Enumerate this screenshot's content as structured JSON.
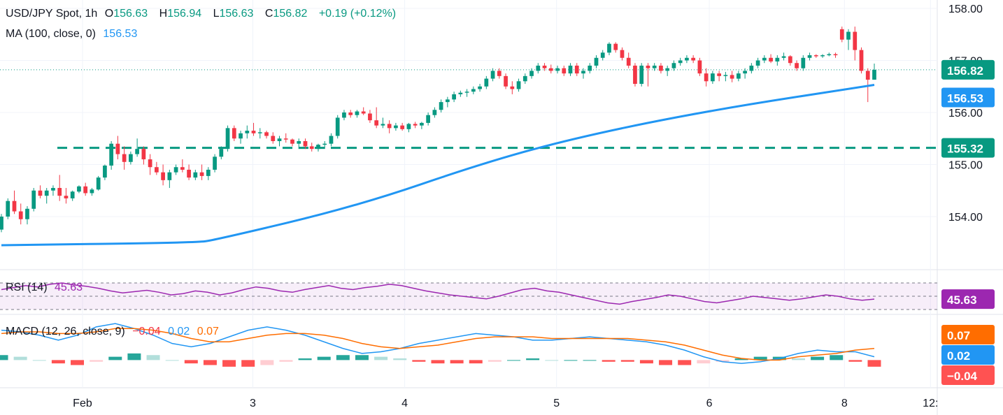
{
  "header": {
    "symbol": "USD/JPY Spot, 1h",
    "open_label": "O",
    "open": "156.63",
    "high_label": "H",
    "high": "156.94",
    "low_label": "L",
    "low": "156.63",
    "close_label": "C",
    "close": "156.82",
    "change": "+0.19 (+0.12%)"
  },
  "ma": {
    "label": "MA (100, close, 0)",
    "value": "156.53"
  },
  "rsi": {
    "label": "RSI (14)",
    "value": "45.63"
  },
  "macd": {
    "label": "MACD (12, 26, close, 9)",
    "hist": "−0.04",
    "macd": "0.02",
    "signal": "0.07"
  },
  "price_labels": {
    "last": "156.82",
    "ma": "156.53",
    "level": "155.32"
  },
  "colors": {
    "up": "#089981",
    "down": "#f23645",
    "ma": "#2196f3",
    "rsi": "#9c27b0",
    "signal": "#ff6d00",
    "level": "#089981"
  },
  "chart_data": {
    "type": "candlestick",
    "y_axis_ticks": [
      "158.00",
      "157.00",
      "156.00",
      "155.00",
      "154.00"
    ],
    "x_axis_ticks": [
      "Feb",
      "3",
      "4",
      "5",
      "6",
      "8",
      "12:"
    ],
    "ylim": [
      153.0,
      158.2
    ],
    "horizontal_level": 155.32,
    "last_price": 156.82,
    "ma_100_last": 156.53,
    "candles": [
      [
        153.75,
        154.05,
        153.7,
        154.0
      ],
      [
        154.0,
        154.35,
        153.95,
        154.3
      ],
      [
        154.3,
        154.5,
        154.05,
        154.1
      ],
      [
        154.1,
        154.25,
        153.85,
        153.95
      ],
      [
        153.95,
        154.2,
        153.85,
        154.15
      ],
      [
        154.15,
        154.55,
        154.1,
        154.5
      ],
      [
        154.5,
        154.6,
        154.35,
        154.4
      ],
      [
        154.4,
        154.55,
        154.25,
        154.5
      ],
      [
        154.5,
        154.6,
        154.4,
        154.55
      ],
      [
        154.55,
        154.8,
        154.3,
        154.4
      ],
      [
        154.4,
        154.55,
        154.25,
        154.35
      ],
      [
        154.35,
        154.5,
        154.3,
        154.48
      ],
      [
        154.48,
        154.6,
        154.45,
        154.58
      ],
      [
        154.58,
        154.65,
        154.4,
        154.45
      ],
      [
        154.45,
        154.55,
        154.4,
        154.52
      ],
      [
        154.52,
        154.78,
        154.5,
        154.75
      ],
      [
        154.75,
        155.0,
        154.7,
        154.98
      ],
      [
        154.98,
        155.45,
        154.9,
        155.4
      ],
      [
        155.4,
        155.55,
        155.1,
        155.2
      ],
      [
        155.2,
        155.35,
        154.9,
        155.05
      ],
      [
        155.05,
        155.25,
        155.0,
        155.2
      ],
      [
        155.2,
        155.5,
        155.15,
        155.3
      ],
      [
        155.3,
        155.35,
        155.0,
        155.1
      ],
      [
        155.1,
        155.2,
        154.8,
        154.95
      ],
      [
        154.95,
        155.05,
        154.8,
        154.85
      ],
      [
        154.85,
        155.0,
        154.6,
        154.7
      ],
      [
        154.7,
        154.9,
        154.55,
        154.85
      ],
      [
        154.85,
        155.0,
        154.8,
        154.95
      ],
      [
        154.95,
        155.1,
        154.85,
        154.9
      ],
      [
        154.9,
        155.0,
        154.7,
        154.75
      ],
      [
        154.75,
        154.9,
        154.7,
        154.85
      ],
      [
        154.85,
        155.0,
        154.7,
        154.78
      ],
      [
        154.78,
        154.95,
        154.7,
        154.9
      ],
      [
        154.9,
        155.2,
        154.85,
        155.15
      ],
      [
        155.15,
        155.35,
        155.1,
        155.3
      ],
      [
        155.3,
        155.75,
        155.25,
        155.7
      ],
      [
        155.7,
        155.75,
        155.45,
        155.5
      ],
      [
        155.5,
        155.65,
        155.4,
        155.6
      ],
      [
        155.6,
        155.75,
        155.5,
        155.65
      ],
      [
        155.65,
        155.8,
        155.55,
        155.6
      ],
      [
        155.6,
        155.7,
        155.5,
        155.62
      ],
      [
        155.62,
        155.65,
        155.5,
        155.55
      ],
      [
        155.55,
        155.62,
        155.4,
        155.45
      ],
      [
        155.45,
        155.55,
        155.35,
        155.5
      ],
      [
        155.5,
        155.6,
        155.42,
        155.48
      ],
      [
        155.48,
        155.5,
        155.35,
        155.4
      ],
      [
        155.4,
        155.5,
        155.3,
        155.45
      ],
      [
        155.45,
        155.5,
        155.3,
        155.35
      ],
      [
        155.35,
        155.42,
        155.25,
        155.3
      ],
      [
        155.3,
        155.4,
        155.25,
        155.38
      ],
      [
        155.38,
        155.45,
        155.3,
        155.4
      ],
      [
        155.4,
        155.6,
        155.35,
        155.55
      ],
      [
        155.55,
        155.95,
        155.5,
        155.9
      ],
      [
        155.9,
        156.05,
        155.85,
        156.0
      ],
      [
        156.0,
        156.05,
        155.9,
        155.95
      ],
      [
        155.95,
        156.05,
        155.9,
        156.02
      ],
      [
        156.02,
        156.1,
        155.95,
        155.98
      ],
      [
        155.98,
        156.05,
        155.8,
        155.85
      ],
      [
        155.85,
        156.1,
        155.7,
        155.75
      ],
      [
        155.75,
        155.9,
        155.7,
        155.78
      ],
      [
        155.78,
        155.85,
        155.6,
        155.7
      ],
      [
        155.7,
        155.8,
        155.65,
        155.75
      ],
      [
        155.75,
        155.8,
        155.65,
        155.68
      ],
      [
        155.68,
        155.8,
        155.62,
        155.78
      ],
      [
        155.78,
        155.82,
        155.7,
        155.75
      ],
      [
        155.75,
        155.82,
        155.68,
        155.8
      ],
      [
        155.8,
        156.0,
        155.75,
        155.95
      ],
      [
        155.95,
        156.1,
        155.9,
        156.05
      ],
      [
        156.05,
        156.25,
        156.0,
        156.2
      ],
      [
        156.2,
        156.3,
        156.1,
        156.25
      ],
      [
        156.25,
        156.4,
        156.2,
        156.35
      ],
      [
        156.35,
        156.42,
        156.3,
        156.38
      ],
      [
        156.38,
        156.45,
        156.3,
        156.4
      ],
      [
        156.4,
        156.5,
        156.35,
        156.45
      ],
      [
        156.45,
        156.55,
        156.4,
        156.5
      ],
      [
        156.5,
        156.7,
        156.45,
        156.65
      ],
      [
        156.65,
        156.85,
        156.6,
        156.8
      ],
      [
        156.8,
        156.85,
        156.65,
        156.7
      ],
      [
        156.7,
        156.75,
        156.45,
        156.5
      ],
      [
        156.5,
        156.6,
        156.35,
        156.45
      ],
      [
        156.45,
        156.65,
        156.4,
        156.6
      ],
      [
        156.6,
        156.75,
        156.55,
        156.7
      ],
      [
        156.7,
        156.85,
        156.65,
        156.8
      ],
      [
        156.8,
        156.95,
        156.75,
        156.9
      ],
      [
        156.9,
        156.95,
        156.8,
        156.85
      ],
      [
        156.85,
        156.92,
        156.75,
        156.8
      ],
      [
        156.8,
        156.9,
        156.75,
        156.85
      ],
      [
        156.85,
        156.9,
        156.7,
        156.75
      ],
      [
        156.75,
        156.95,
        156.7,
        156.9
      ],
      [
        156.9,
        156.95,
        156.7,
        156.75
      ],
      [
        156.75,
        156.85,
        156.65,
        156.8
      ],
      [
        156.8,
        156.95,
        156.75,
        156.9
      ],
      [
        156.9,
        157.1,
        156.85,
        157.05
      ],
      [
        157.05,
        157.2,
        157.0,
        157.15
      ],
      [
        157.15,
        157.35,
        157.1,
        157.32
      ],
      [
        157.32,
        157.35,
        157.15,
        157.2
      ],
      [
        157.2,
        157.25,
        157.0,
        157.05
      ],
      [
        157.05,
        157.15,
        156.85,
        156.9
      ],
      [
        156.9,
        156.95,
        156.5,
        156.55
      ],
      [
        156.55,
        156.95,
        156.5,
        156.9
      ],
      [
        156.9,
        156.95,
        156.5,
        156.85
      ],
      [
        156.85,
        156.95,
        156.8,
        156.9
      ],
      [
        156.9,
        156.95,
        156.75,
        156.8
      ],
      [
        156.8,
        156.9,
        156.7,
        156.85
      ],
      [
        156.85,
        157.0,
        156.8,
        156.95
      ],
      [
        156.95,
        157.05,
        156.9,
        157.0
      ],
      [
        157.0,
        157.1,
        156.95,
        157.05
      ],
      [
        157.05,
        157.1,
        156.95,
        157.0
      ],
      [
        157.0,
        157.05,
        156.7,
        156.75
      ],
      [
        156.75,
        156.85,
        156.5,
        156.6
      ],
      [
        156.6,
        156.8,
        156.55,
        156.75
      ],
      [
        156.75,
        156.8,
        156.6,
        156.7
      ],
      [
        156.7,
        156.78,
        156.6,
        156.72
      ],
      [
        156.72,
        156.8,
        156.58,
        156.65
      ],
      [
        156.65,
        156.8,
        156.6,
        156.75
      ],
      [
        156.75,
        156.85,
        156.65,
        156.8
      ],
      [
        156.8,
        156.95,
        156.75,
        156.9
      ],
      [
        156.9,
        157.05,
        156.85,
        157.0
      ],
      [
        157.0,
        157.1,
        156.95,
        157.05
      ],
      [
        157.05,
        157.12,
        156.95,
        156.98
      ],
      [
        156.98,
        157.1,
        156.9,
        157.05
      ],
      [
        157.05,
        157.15,
        157.0,
        157.08
      ],
      [
        157.08,
        157.1,
        156.9,
        156.95
      ],
      [
        156.95,
        157.0,
        156.8,
        156.85
      ],
      [
        156.85,
        157.1,
        156.8,
        157.05
      ],
      [
        157.05,
        157.15,
        157.0,
        157.1
      ],
      [
        157.1,
        157.12,
        157.05,
        157.08
      ],
      [
        157.08,
        157.12,
        157.05,
        157.1
      ],
      [
        157.1,
        157.15,
        157.08,
        157.12
      ],
      [
        157.12,
        157.15,
        157.05,
        157.1
      ],
      [
        157.6,
        157.65,
        157.35,
        157.4
      ],
      [
        157.4,
        157.6,
        157.2,
        157.55
      ],
      [
        157.55,
        157.65,
        157.0,
        157.2
      ],
      [
        157.2,
        157.25,
        156.75,
        156.8
      ],
      [
        156.8,
        156.85,
        156.2,
        156.63
      ],
      [
        156.63,
        156.94,
        156.63,
        156.82
      ]
    ],
    "ma_100": [
      [
        0,
        153.45
      ],
      [
        30,
        153.5
      ],
      [
        33,
        153.55
      ],
      [
        55,
        154.2
      ],
      [
        75,
        155.05
      ],
      [
        90,
        155.55
      ],
      [
        110,
        156.05
      ],
      [
        135,
        156.53
      ]
    ],
    "rsi_range": [
      30,
      70
    ],
    "rsi_levels": [
      70,
      50,
      30
    ],
    "rsi_values": [
      60,
      63,
      66,
      64,
      68,
      70,
      67,
      65,
      62,
      58,
      55,
      57,
      59,
      56,
      52,
      54,
      58,
      56,
      52,
      55,
      60,
      64,
      62,
      58,
      56,
      60,
      63,
      66,
      62,
      60,
      63,
      65,
      68,
      66,
      62,
      58,
      55,
      52,
      50,
      48,
      46,
      50,
      55,
      60,
      62,
      58,
      56,
      52,
      48,
      44,
      40,
      38,
      42,
      45,
      48,
      52,
      50,
      46,
      42,
      40,
      43,
      46,
      50,
      48,
      46,
      44,
      46,
      49,
      52,
      50,
      46,
      44,
      45.63
    ],
    "macd_range": [
      -0.15,
      0.25
    ],
    "macd_line": [
      0.18,
      0.17,
      0.15,
      0.12,
      0.15,
      0.2,
      0.22,
      0.19,
      0.15,
      0.1,
      0.08,
      0.1,
      0.14,
      0.18,
      0.2,
      0.18,
      0.15,
      0.11,
      0.07,
      0.04,
      0.05,
      0.07,
      0.1,
      0.12,
      0.14,
      0.16,
      0.15,
      0.14,
      0.12,
      0.12,
      0.13,
      0.14,
      0.13,
      0.12,
      0.11,
      0.09,
      0.06,
      0.02,
      -0.01,
      -0.02,
      -0.01,
      0.01,
      0.04,
      0.06,
      0.05,
      0.05,
      0.02
    ],
    "signal_line": [
      0.16,
      0.17,
      0.17,
      0.16,
      0.16,
      0.17,
      0.19,
      0.19,
      0.18,
      0.16,
      0.13,
      0.11,
      0.11,
      0.13,
      0.15,
      0.16,
      0.16,
      0.15,
      0.13,
      0.1,
      0.08,
      0.07,
      0.08,
      0.09,
      0.11,
      0.13,
      0.14,
      0.14,
      0.14,
      0.13,
      0.13,
      0.13,
      0.13,
      0.13,
      0.12,
      0.11,
      0.09,
      0.06,
      0.03,
      0.01,
      0.0,
      0.0,
      0.02,
      0.03,
      0.04,
      0.06,
      0.07
    ],
    "macd_hist": [
      0.03,
      0.02,
      0.0,
      -0.02,
      -0.03,
      -0.01,
      0.02,
      0.04,
      0.03,
      0.0,
      -0.02,
      -0.03,
      -0.04,
      -0.04,
      -0.03,
      -0.01,
      0.01,
      0.02,
      0.03,
      0.03,
      0.02,
      0.01,
      -0.01,
      -0.02,
      -0.02,
      -0.02,
      -0.01,
      0.0,
      0.01,
      0.0,
      0.0,
      0.0,
      -0.01,
      -0.01,
      -0.02,
      -0.03,
      -0.03,
      -0.02,
      -0.01,
      0.01,
      0.02,
      0.02,
      0.01,
      0.02,
      0.03,
      -0.01,
      -0.04
    ]
  }
}
